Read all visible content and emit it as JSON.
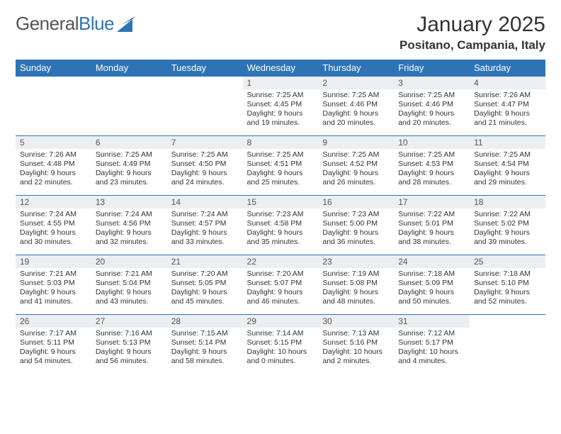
{
  "logo": {
    "text1": "General",
    "text2": "Blue"
  },
  "title": "January 2025",
  "subtitle": "Positano, Campania, Italy",
  "colors": {
    "header_bg": "#2e74b5",
    "header_text": "#ffffff",
    "daynum_bg": "#eceff1",
    "border": "#2e74b5",
    "page_bg": "#ffffff",
    "text": "#333333"
  },
  "day_headers": [
    "Sunday",
    "Monday",
    "Tuesday",
    "Wednesday",
    "Thursday",
    "Friday",
    "Saturday"
  ],
  "weeks": [
    [
      {
        "n": "",
        "sr": "",
        "ss": "",
        "dl": ""
      },
      {
        "n": "",
        "sr": "",
        "ss": "",
        "dl": ""
      },
      {
        "n": "",
        "sr": "",
        "ss": "",
        "dl": ""
      },
      {
        "n": "1",
        "sr": "Sunrise: 7:25 AM",
        "ss": "Sunset: 4:45 PM",
        "dl": "Daylight: 9 hours and 19 minutes."
      },
      {
        "n": "2",
        "sr": "Sunrise: 7:25 AM",
        "ss": "Sunset: 4:46 PM",
        "dl": "Daylight: 9 hours and 20 minutes."
      },
      {
        "n": "3",
        "sr": "Sunrise: 7:25 AM",
        "ss": "Sunset: 4:46 PM",
        "dl": "Daylight: 9 hours and 20 minutes."
      },
      {
        "n": "4",
        "sr": "Sunrise: 7:26 AM",
        "ss": "Sunset: 4:47 PM",
        "dl": "Daylight: 9 hours and 21 minutes."
      }
    ],
    [
      {
        "n": "5",
        "sr": "Sunrise: 7:26 AM",
        "ss": "Sunset: 4:48 PM",
        "dl": "Daylight: 9 hours and 22 minutes."
      },
      {
        "n": "6",
        "sr": "Sunrise: 7:25 AM",
        "ss": "Sunset: 4:49 PM",
        "dl": "Daylight: 9 hours and 23 minutes."
      },
      {
        "n": "7",
        "sr": "Sunrise: 7:25 AM",
        "ss": "Sunset: 4:50 PM",
        "dl": "Daylight: 9 hours and 24 minutes."
      },
      {
        "n": "8",
        "sr": "Sunrise: 7:25 AM",
        "ss": "Sunset: 4:51 PM",
        "dl": "Daylight: 9 hours and 25 minutes."
      },
      {
        "n": "9",
        "sr": "Sunrise: 7:25 AM",
        "ss": "Sunset: 4:52 PM",
        "dl": "Daylight: 9 hours and 26 minutes."
      },
      {
        "n": "10",
        "sr": "Sunrise: 7:25 AM",
        "ss": "Sunset: 4:53 PM",
        "dl": "Daylight: 9 hours and 28 minutes."
      },
      {
        "n": "11",
        "sr": "Sunrise: 7:25 AM",
        "ss": "Sunset: 4:54 PM",
        "dl": "Daylight: 9 hours and 29 minutes."
      }
    ],
    [
      {
        "n": "12",
        "sr": "Sunrise: 7:24 AM",
        "ss": "Sunset: 4:55 PM",
        "dl": "Daylight: 9 hours and 30 minutes."
      },
      {
        "n": "13",
        "sr": "Sunrise: 7:24 AM",
        "ss": "Sunset: 4:56 PM",
        "dl": "Daylight: 9 hours and 32 minutes."
      },
      {
        "n": "14",
        "sr": "Sunrise: 7:24 AM",
        "ss": "Sunset: 4:57 PM",
        "dl": "Daylight: 9 hours and 33 minutes."
      },
      {
        "n": "15",
        "sr": "Sunrise: 7:23 AM",
        "ss": "Sunset: 4:58 PM",
        "dl": "Daylight: 9 hours and 35 minutes."
      },
      {
        "n": "16",
        "sr": "Sunrise: 7:23 AM",
        "ss": "Sunset: 5:00 PM",
        "dl": "Daylight: 9 hours and 36 minutes."
      },
      {
        "n": "17",
        "sr": "Sunrise: 7:22 AM",
        "ss": "Sunset: 5:01 PM",
        "dl": "Daylight: 9 hours and 38 minutes."
      },
      {
        "n": "18",
        "sr": "Sunrise: 7:22 AM",
        "ss": "Sunset: 5:02 PM",
        "dl": "Daylight: 9 hours and 39 minutes."
      }
    ],
    [
      {
        "n": "19",
        "sr": "Sunrise: 7:21 AM",
        "ss": "Sunset: 5:03 PM",
        "dl": "Daylight: 9 hours and 41 minutes."
      },
      {
        "n": "20",
        "sr": "Sunrise: 7:21 AM",
        "ss": "Sunset: 5:04 PM",
        "dl": "Daylight: 9 hours and 43 minutes."
      },
      {
        "n": "21",
        "sr": "Sunrise: 7:20 AM",
        "ss": "Sunset: 5:05 PM",
        "dl": "Daylight: 9 hours and 45 minutes."
      },
      {
        "n": "22",
        "sr": "Sunrise: 7:20 AM",
        "ss": "Sunset: 5:07 PM",
        "dl": "Daylight: 9 hours and 46 minutes."
      },
      {
        "n": "23",
        "sr": "Sunrise: 7:19 AM",
        "ss": "Sunset: 5:08 PM",
        "dl": "Daylight: 9 hours and 48 minutes."
      },
      {
        "n": "24",
        "sr": "Sunrise: 7:18 AM",
        "ss": "Sunset: 5:09 PM",
        "dl": "Daylight: 9 hours and 50 minutes."
      },
      {
        "n": "25",
        "sr": "Sunrise: 7:18 AM",
        "ss": "Sunset: 5:10 PM",
        "dl": "Daylight: 9 hours and 52 minutes."
      }
    ],
    [
      {
        "n": "26",
        "sr": "Sunrise: 7:17 AM",
        "ss": "Sunset: 5:11 PM",
        "dl": "Daylight: 9 hours and 54 minutes."
      },
      {
        "n": "27",
        "sr": "Sunrise: 7:16 AM",
        "ss": "Sunset: 5:13 PM",
        "dl": "Daylight: 9 hours and 56 minutes."
      },
      {
        "n": "28",
        "sr": "Sunrise: 7:15 AM",
        "ss": "Sunset: 5:14 PM",
        "dl": "Daylight: 9 hours and 58 minutes."
      },
      {
        "n": "29",
        "sr": "Sunrise: 7:14 AM",
        "ss": "Sunset: 5:15 PM",
        "dl": "Daylight: 10 hours and 0 minutes."
      },
      {
        "n": "30",
        "sr": "Sunrise: 7:13 AM",
        "ss": "Sunset: 5:16 PM",
        "dl": "Daylight: 10 hours and 2 minutes."
      },
      {
        "n": "31",
        "sr": "Sunrise: 7:12 AM",
        "ss": "Sunset: 5:17 PM",
        "dl": "Daylight: 10 hours and 4 minutes."
      },
      {
        "n": "",
        "sr": "",
        "ss": "",
        "dl": ""
      }
    ]
  ]
}
